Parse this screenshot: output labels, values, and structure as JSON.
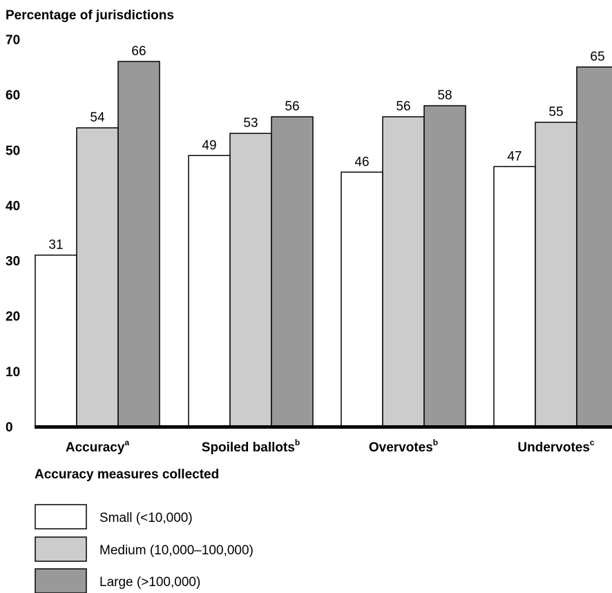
{
  "chart_data": {
    "type": "bar",
    "ylabel": "Percentage of jurisdictions",
    "xlabel": "Accuracy measures collected",
    "ylim": [
      0,
      70
    ],
    "yticks": [
      0,
      10,
      20,
      30,
      40,
      50,
      60,
      70
    ],
    "grid": false,
    "legend_position": "bottom-left",
    "categories": [
      {
        "label": "Accuracy",
        "sup": "a"
      },
      {
        "label": "Spoiled ballots",
        "sup": "b"
      },
      {
        "label": "Overvotes",
        "sup": "b"
      },
      {
        "label": "Undervotes",
        "sup": "c"
      }
    ],
    "series": [
      {
        "name": "Small (<10,000)",
        "color": "#ffffff",
        "values": [
          31,
          49,
          46,
          47
        ]
      },
      {
        "name": "Medium (10,000–100,000)",
        "color": "#cccccc",
        "values": [
          54,
          53,
          56,
          55
        ]
      },
      {
        "name": "Large (>100,000)",
        "color": "#999999",
        "values": [
          66,
          56,
          58,
          65
        ]
      }
    ]
  }
}
